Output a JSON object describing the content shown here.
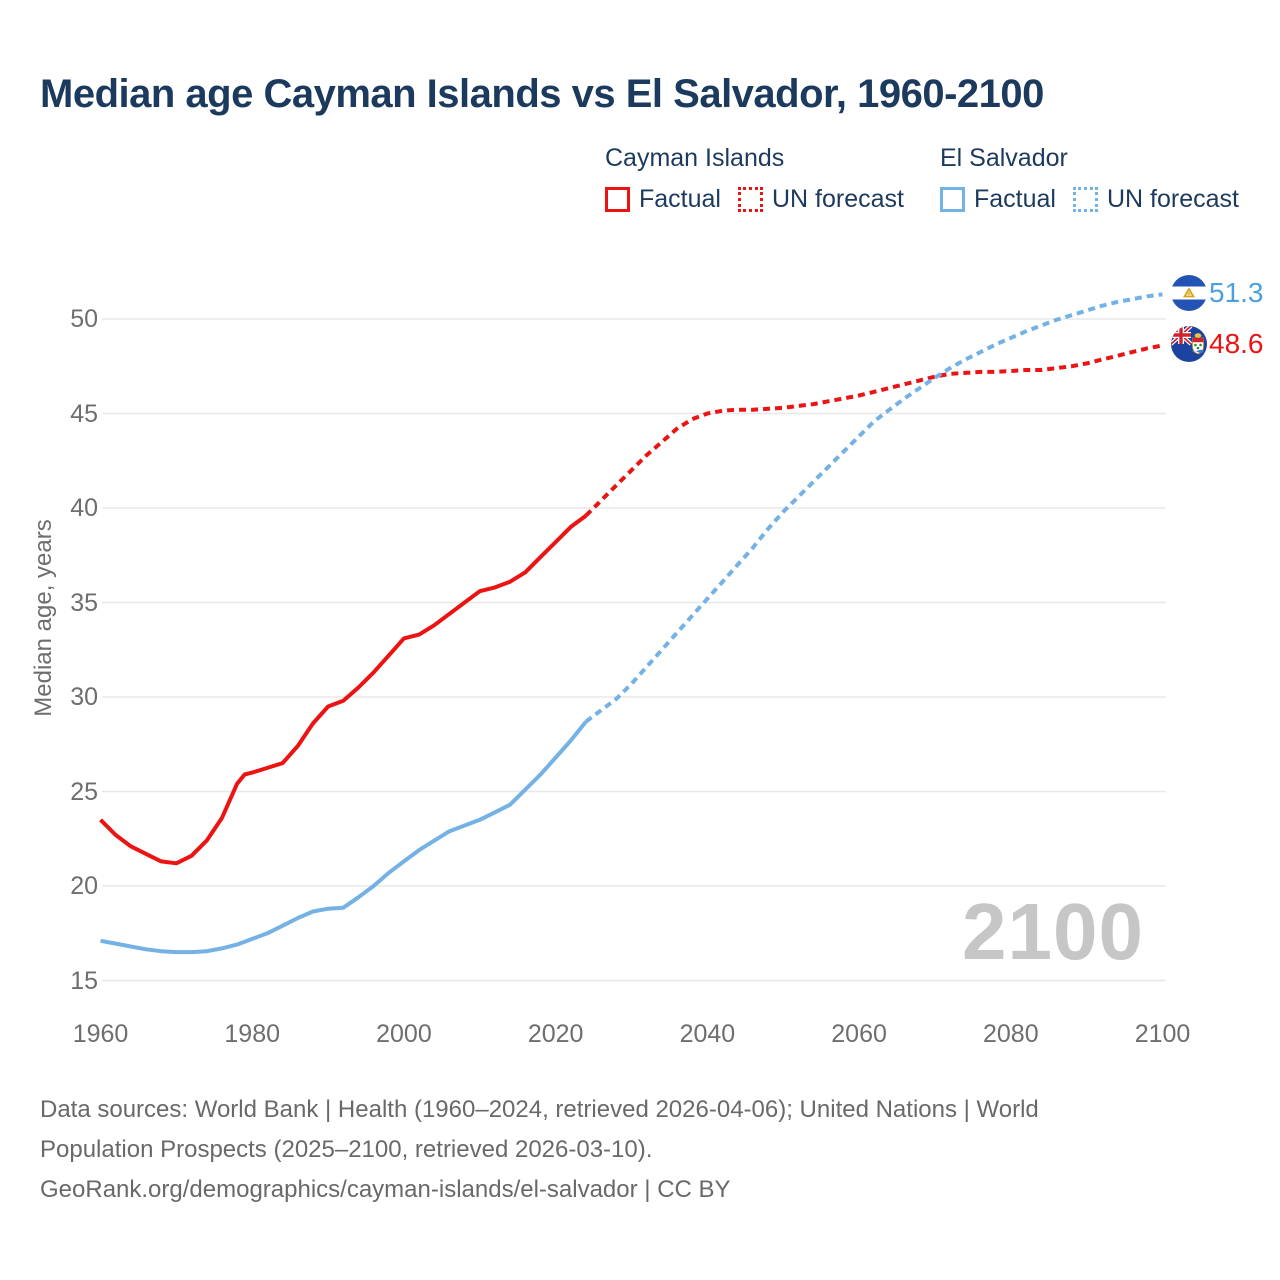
{
  "title": "Median age Cayman Islands vs El Salvador, 1960-2100",
  "y_axis_title": "Median age, years",
  "watermark": "2100",
  "colors": {
    "cayman": "#ec1313",
    "salvador": "#74b1e5",
    "salvador_label": "#4d9fdf",
    "title_text": "#1c3a5e",
    "axis_text": "#6e6e6e",
    "gridline": "#e8e8e8",
    "watermark": "#c6c6c6"
  },
  "legend": {
    "groups": [
      {
        "title": "Cayman Islands",
        "items": [
          {
            "label": "Factual",
            "style": "solid",
            "color": "#ec1313"
          },
          {
            "label": "UN forecast",
            "style": "dotted",
            "color": "#ec1313"
          }
        ]
      },
      {
        "title": "El Salvador",
        "items": [
          {
            "label": "Factual",
            "style": "solid",
            "color": "#74b1e5"
          },
          {
            "label": "UN forecast",
            "style": "dotted",
            "color": "#74b1e5"
          }
        ]
      }
    ]
  },
  "end_labels": [
    {
      "series": "El Salvador",
      "value": "51.3",
      "color": "#4d9fdf",
      "flag": "el-salvador"
    },
    {
      "series": "Cayman Islands",
      "value": "48.6",
      "color": "#ec1313",
      "flag": "cayman-islands"
    }
  ],
  "footer": {
    "line1": "Data sources: World Bank | Health (1960–2024, retrieved 2026-04-06); United Nations | World",
    "line2": "Population Prospects (2025–2100, retrieved 2026-03-10).",
    "line3": "GeoRank.org/demographics/cayman-islands/el-salvador | CC BY"
  },
  "chart_data": {
    "type": "line",
    "title": "Median age Cayman Islands vs El Salvador, 1960-2100",
    "xlabel": "",
    "ylabel": "Median age, years",
    "x_range": [
      1960,
      2100
    ],
    "y_range": [
      15,
      52
    ],
    "x_ticks": [
      1960,
      1980,
      2000,
      2020,
      2040,
      2060,
      2080,
      2100
    ],
    "y_ticks": [
      15,
      20,
      25,
      30,
      35,
      40,
      45,
      50
    ],
    "grid": "horizontal",
    "legend_position": "top-right",
    "series": [
      {
        "id": "cayman-factual",
        "name": "Cayman Islands — Factual",
        "color": "#ec1313",
        "dash": "solid",
        "points": [
          [
            1960,
            23.5
          ],
          [
            1962,
            22.7
          ],
          [
            1964,
            22.1
          ],
          [
            1966,
            21.7
          ],
          [
            1968,
            21.3
          ],
          [
            1970,
            21.2
          ],
          [
            1972,
            21.6
          ],
          [
            1974,
            22.4
          ],
          [
            1976,
            23.6
          ],
          [
            1978,
            25.4
          ],
          [
            1979,
            25.9
          ],
          [
            1980,
            26.0
          ],
          [
            1982,
            26.25
          ],
          [
            1984,
            26.5
          ],
          [
            1986,
            27.4
          ],
          [
            1988,
            28.6
          ],
          [
            1990,
            29.5
          ],
          [
            1992,
            29.8
          ],
          [
            1994,
            30.5
          ],
          [
            1996,
            31.3
          ],
          [
            1998,
            32.2
          ],
          [
            2000,
            33.1
          ],
          [
            2002,
            33.3
          ],
          [
            2004,
            33.8
          ],
          [
            2006,
            34.4
          ],
          [
            2008,
            35.0
          ],
          [
            2010,
            35.6
          ],
          [
            2012,
            35.8
          ],
          [
            2014,
            36.1
          ],
          [
            2016,
            36.6
          ],
          [
            2018,
            37.4
          ],
          [
            2020,
            38.2
          ],
          [
            2022,
            39.0
          ],
          [
            2024,
            39.6
          ]
        ]
      },
      {
        "id": "cayman-forecast",
        "name": "Cayman Islands — UN forecast",
        "color": "#ec1313",
        "dash": "dashed",
        "points": [
          [
            2024,
            39.6
          ],
          [
            2026,
            40.4
          ],
          [
            2028,
            41.2
          ],
          [
            2030,
            42.0
          ],
          [
            2032,
            42.8
          ],
          [
            2034,
            43.5
          ],
          [
            2036,
            44.2
          ],
          [
            2038,
            44.7
          ],
          [
            2040,
            45.0
          ],
          [
            2042,
            45.15
          ],
          [
            2044,
            45.2
          ],
          [
            2046,
            45.2
          ],
          [
            2048,
            45.25
          ],
          [
            2050,
            45.3
          ],
          [
            2052,
            45.4
          ],
          [
            2054,
            45.5
          ],
          [
            2056,
            45.65
          ],
          [
            2058,
            45.8
          ],
          [
            2060,
            45.95
          ],
          [
            2062,
            46.15
          ],
          [
            2064,
            46.35
          ],
          [
            2066,
            46.55
          ],
          [
            2068,
            46.75
          ],
          [
            2070,
            46.95
          ],
          [
            2072,
            47.1
          ],
          [
            2074,
            47.15
          ],
          [
            2076,
            47.2
          ],
          [
            2078,
            47.2
          ],
          [
            2080,
            47.25
          ],
          [
            2082,
            47.3
          ],
          [
            2084,
            47.3
          ],
          [
            2086,
            47.4
          ],
          [
            2088,
            47.5
          ],
          [
            2090,
            47.65
          ],
          [
            2092,
            47.85
          ],
          [
            2094,
            48.05
          ],
          [
            2096,
            48.25
          ],
          [
            2098,
            48.45
          ],
          [
            2100,
            48.6
          ]
        ]
      },
      {
        "id": "salvador-factual",
        "name": "El Salvador — Factual",
        "color": "#74b1e5",
        "dash": "solid",
        "points": [
          [
            1960,
            17.1
          ],
          [
            1962,
            16.95
          ],
          [
            1964,
            16.8
          ],
          [
            1966,
            16.65
          ],
          [
            1968,
            16.55
          ],
          [
            1970,
            16.5
          ],
          [
            1972,
            16.5
          ],
          [
            1974,
            16.55
          ],
          [
            1976,
            16.7
          ],
          [
            1978,
            16.9
          ],
          [
            1980,
            17.2
          ],
          [
            1982,
            17.5
          ],
          [
            1984,
            17.9
          ],
          [
            1986,
            18.3
          ],
          [
            1988,
            18.65
          ],
          [
            1990,
            18.8
          ],
          [
            1992,
            18.85
          ],
          [
            1994,
            19.4
          ],
          [
            1996,
            20.0
          ],
          [
            1998,
            20.7
          ],
          [
            2000,
            21.3
          ],
          [
            2002,
            21.9
          ],
          [
            2004,
            22.4
          ],
          [
            2006,
            22.9
          ],
          [
            2008,
            23.2
          ],
          [
            2010,
            23.5
          ],
          [
            2012,
            23.9
          ],
          [
            2014,
            24.3
          ],
          [
            2016,
            25.1
          ],
          [
            2018,
            25.9
          ],
          [
            2020,
            26.8
          ],
          [
            2022,
            27.7
          ],
          [
            2024,
            28.7
          ]
        ]
      },
      {
        "id": "salvador-forecast",
        "name": "El Salvador — UN forecast",
        "color": "#74b1e5",
        "dash": "dashed",
        "points": [
          [
            2024,
            28.7
          ],
          [
            2026,
            29.3
          ],
          [
            2028,
            29.9
          ],
          [
            2030,
            30.7
          ],
          [
            2032,
            31.6
          ],
          [
            2034,
            32.5
          ],
          [
            2036,
            33.4
          ],
          [
            2038,
            34.3
          ],
          [
            2040,
            35.2
          ],
          [
            2042,
            36.1
          ],
          [
            2044,
            37.0
          ],
          [
            2046,
            37.9
          ],
          [
            2048,
            38.9
          ],
          [
            2050,
            39.8
          ],
          [
            2052,
            40.6
          ],
          [
            2054,
            41.4
          ],
          [
            2056,
            42.2
          ],
          [
            2058,
            43.0
          ],
          [
            2060,
            43.8
          ],
          [
            2062,
            44.6
          ],
          [
            2064,
            45.2
          ],
          [
            2066,
            45.8
          ],
          [
            2068,
            46.35
          ],
          [
            2070,
            46.9
          ],
          [
            2072,
            47.4
          ],
          [
            2074,
            47.85
          ],
          [
            2076,
            48.25
          ],
          [
            2078,
            48.65
          ],
          [
            2080,
            49.0
          ],
          [
            2082,
            49.35
          ],
          [
            2084,
            49.65
          ],
          [
            2086,
            49.95
          ],
          [
            2088,
            50.2
          ],
          [
            2090,
            50.45
          ],
          [
            2092,
            50.7
          ],
          [
            2094,
            50.9
          ],
          [
            2096,
            51.05
          ],
          [
            2098,
            51.2
          ],
          [
            2100,
            51.3
          ]
        ]
      }
    ]
  }
}
